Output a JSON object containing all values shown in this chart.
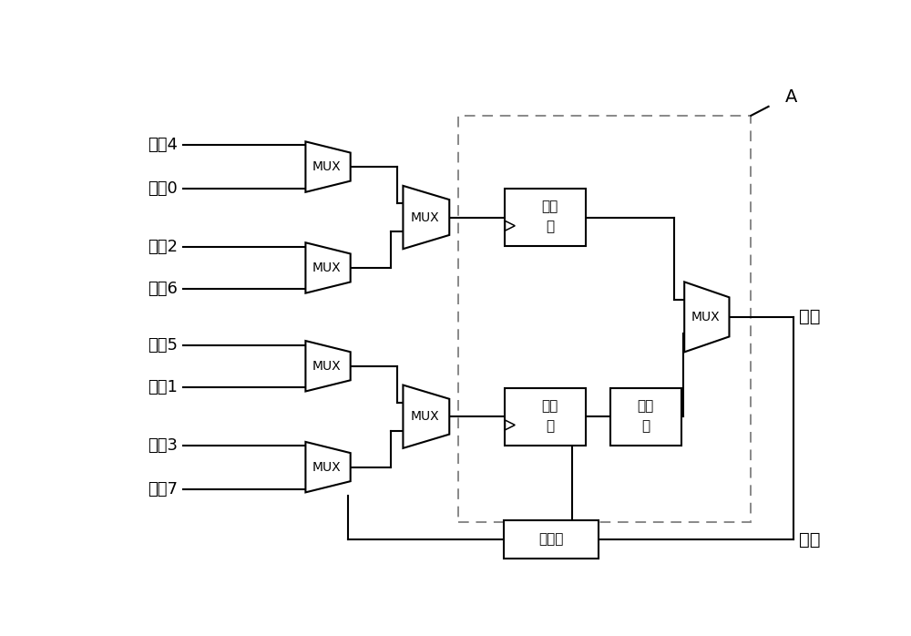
{
  "bg_color": "#ffffff",
  "line_color": "#000000",
  "box_color": "#ffffff",
  "input_labels": [
    "数据4",
    "数据0",
    "数据2",
    "数据6",
    "数据5",
    "数据1",
    "数据3",
    "数据7"
  ],
  "output_label": "输出",
  "clock_label": "时钟",
  "label_A": "A",
  "ff1_label": [
    "触发",
    "器"
  ],
  "ff2_label": [
    "触发",
    "器"
  ],
  "latch_label": [
    "锁存",
    "器"
  ],
  "fdiv_label": "分频器",
  "mux_label": "MUX"
}
